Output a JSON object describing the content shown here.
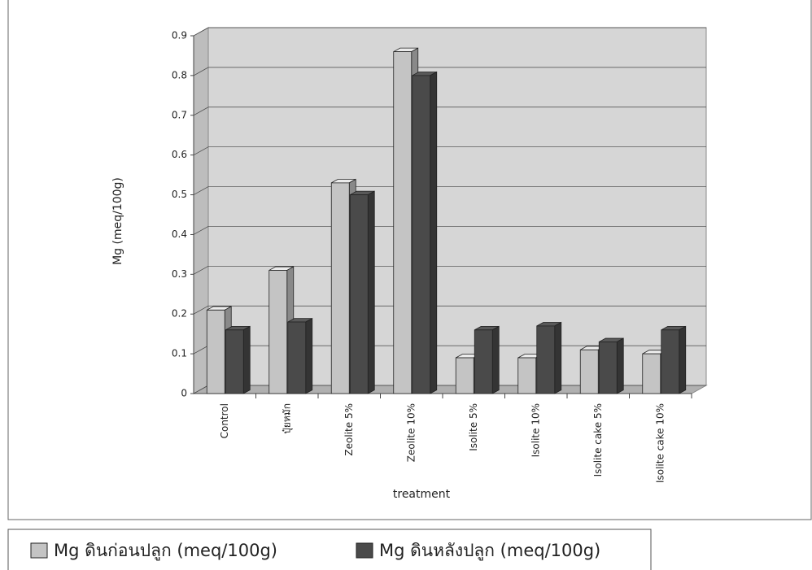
{
  "chart_data": {
    "type": "bar",
    "x_label": "treatment",
    "y_label": "Mg (meq/100g)",
    "categories": [
      "Control",
      "ปุ๋ยหมัก",
      "Zeolite 5%",
      "Zeolite 10%",
      "Isolite 5%",
      "Isolite 10%",
      "Isolite cake 5%",
      "Isolite cake 10%"
    ],
    "series": [
      {
        "name": "Mg ดินก่อนปลูก (meq/100g)",
        "color": "#c4c4c4",
        "values": [
          0.21,
          0.31,
          0.53,
          0.86,
          0.09,
          0.09,
          0.11,
          0.1
        ]
      },
      {
        "name": "Mg ดินหลังปลูก (meq/100g)",
        "color": "#4a4a4a",
        "values": [
          0.16,
          0.18,
          0.5,
          0.8,
          0.16,
          0.17,
          0.13,
          0.16
        ]
      }
    ],
    "ylim": [
      0,
      0.9
    ],
    "yticks": [
      0,
      0.1,
      0.2,
      0.3,
      0.4,
      0.5,
      0.6,
      0.7,
      0.8,
      0.9
    ],
    "grid": true,
    "legend": "bottom"
  }
}
